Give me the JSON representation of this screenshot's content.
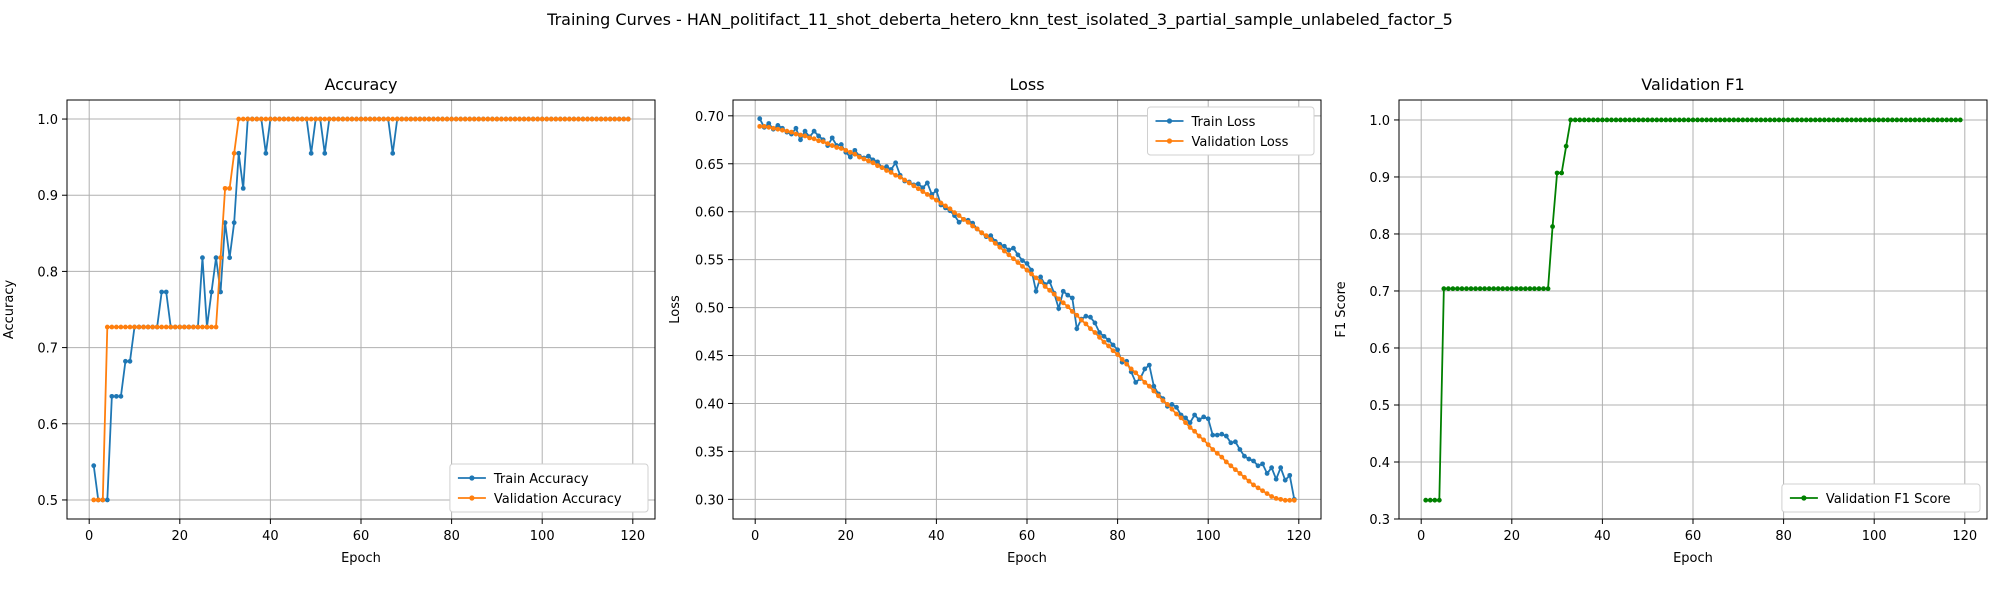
{
  "figure": {
    "suptitle": "Training Curves - HAN_politifact_11_shot_deberta_hetero_knn_test_isolated_3_partial_sample_unlabeled_factor_5"
  },
  "colors": {
    "train": "#1f77b4",
    "validation": "#ff7f0e",
    "f1": "#008000",
    "grid": "#b0b0b0"
  },
  "chart_data": [
    {
      "type": "line",
      "title": "Accuracy",
      "xlabel": "Epoch",
      "ylabel": "Accuracy",
      "xlim": [
        -4.9,
        124.9
      ],
      "ylim": [
        0.475,
        1.025
      ],
      "xticks": [
        0,
        20,
        40,
        60,
        80,
        100,
        120
      ],
      "yticks": [
        0.5,
        0.6,
        0.7,
        0.8,
        0.9,
        1.0
      ],
      "ytick_labels": [
        "0.5",
        "0.6",
        "0.7",
        "0.8",
        "0.9",
        "1.0"
      ],
      "grid": true,
      "legend_position": "bottom-right",
      "series": [
        {
          "name": "Train Accuracy",
          "color": "#1f77b4",
          "x_start": 1,
          "values": [
            0.545,
            0.5,
            0.5,
            0.5,
            0.636,
            0.636,
            0.636,
            0.682,
            0.682,
            0.727,
            0.727,
            0.727,
            0.727,
            0.727,
            0.727,
            0.773,
            0.773,
            0.727,
            0.727,
            0.727,
            0.727,
            0.727,
            0.727,
            0.727,
            0.818,
            0.727,
            0.773,
            0.818,
            0.773,
            0.864,
            0.818,
            0.864,
            0.955,
            0.909,
            1.0,
            1.0,
            1.0,
            1.0,
            0.955,
            1.0,
            1.0,
            1.0,
            1.0,
            1.0,
            1.0,
            1.0,
            1.0,
            1.0,
            0.955,
            1.0,
            1.0,
            0.955,
            1.0,
            1.0,
            1.0,
            1.0,
            1.0,
            1.0,
            1.0,
            1.0,
            1.0,
            1.0,
            1.0,
            1.0,
            1.0,
            1.0,
            0.955,
            1.0,
            1.0,
            1.0,
            1.0,
            1.0,
            1.0,
            1.0,
            1.0,
            1.0,
            1.0,
            1.0,
            1.0,
            1.0,
            1.0,
            1.0,
            1.0,
            1.0,
            1.0,
            1.0,
            1.0,
            1.0,
            1.0,
            1.0,
            1.0,
            1.0,
            1.0,
            1.0,
            1.0,
            1.0,
            1.0,
            1.0,
            1.0,
            1.0,
            1.0,
            1.0,
            1.0,
            1.0,
            1.0,
            1.0,
            1.0,
            1.0,
            1.0,
            1.0,
            1.0,
            1.0,
            1.0,
            1.0,
            1.0,
            1.0,
            1.0,
            1.0,
            1.0
          ]
        },
        {
          "name": "Validation Accuracy",
          "color": "#ff7f0e",
          "x_start": 1,
          "values": [
            0.5,
            0.5,
            0.5,
            0.727,
            0.727,
            0.727,
            0.727,
            0.727,
            0.727,
            0.727,
            0.727,
            0.727,
            0.727,
            0.727,
            0.727,
            0.727,
            0.727,
            0.727,
            0.727,
            0.727,
            0.727,
            0.727,
            0.727,
            0.727,
            0.727,
            0.727,
            0.727,
            0.727,
            0.818,
            0.909,
            0.909,
            0.955,
            1.0,
            1.0,
            1.0,
            1.0,
            1.0,
            1.0,
            1.0,
            1.0,
            1.0,
            1.0,
            1.0,
            1.0,
            1.0,
            1.0,
            1.0,
            1.0,
            1.0,
            1.0,
            1.0,
            1.0,
            1.0,
            1.0,
            1.0,
            1.0,
            1.0,
            1.0,
            1.0,
            1.0,
            1.0,
            1.0,
            1.0,
            1.0,
            1.0,
            1.0,
            1.0,
            1.0,
            1.0,
            1.0,
            1.0,
            1.0,
            1.0,
            1.0,
            1.0,
            1.0,
            1.0,
            1.0,
            1.0,
            1.0,
            1.0,
            1.0,
            1.0,
            1.0,
            1.0,
            1.0,
            1.0,
            1.0,
            1.0,
            1.0,
            1.0,
            1.0,
            1.0,
            1.0,
            1.0,
            1.0,
            1.0,
            1.0,
            1.0,
            1.0,
            1.0,
            1.0,
            1.0,
            1.0,
            1.0,
            1.0,
            1.0,
            1.0,
            1.0,
            1.0,
            1.0,
            1.0,
            1.0,
            1.0,
            1.0,
            1.0,
            1.0,
            1.0,
            1.0
          ]
        }
      ]
    },
    {
      "type": "line",
      "title": "Loss",
      "xlabel": "Epoch",
      "ylabel": "Loss",
      "xlim": [
        -4.9,
        124.9
      ],
      "ylim": [
        0.2795,
        0.7165
      ],
      "xticks": [
        0,
        20,
        40,
        60,
        80,
        100,
        120
      ],
      "yticks": [
        0.3,
        0.35,
        0.4,
        0.45,
        0.5,
        0.55,
        0.6,
        0.65,
        0.7
      ],
      "ytick_labels": [
        "0.30",
        "0.35",
        "0.40",
        "0.45",
        "0.50",
        "0.55",
        "0.60",
        "0.65",
        "0.70"
      ],
      "grid": true,
      "legend_position": "top-right",
      "series": [
        {
          "name": "Train Loss",
          "color": "#1f77b4",
          "x_start": 1,
          "values": [
            0.697,
            0.688,
            0.692,
            0.686,
            0.69,
            0.687,
            0.683,
            0.681,
            0.687,
            0.675,
            0.684,
            0.678,
            0.684,
            0.679,
            0.675,
            0.669,
            0.677,
            0.669,
            0.67,
            0.662,
            0.657,
            0.664,
            0.658,
            0.656,
            0.658,
            0.654,
            0.652,
            0.646,
            0.647,
            0.644,
            0.651,
            0.638,
            0.632,
            0.631,
            0.628,
            0.629,
            0.625,
            0.63,
            0.618,
            0.622,
            0.607,
            0.604,
            0.601,
            0.596,
            0.589,
            0.592,
            0.591,
            0.588,
            0.582,
            0.578,
            0.574,
            0.575,
            0.569,
            0.566,
            0.564,
            0.56,
            0.562,
            0.555,
            0.549,
            0.546,
            0.539,
            0.517,
            0.532,
            0.524,
            0.527,
            0.515,
            0.499,
            0.517,
            0.513,
            0.51,
            0.478,
            0.488,
            0.491,
            0.49,
            0.484,
            0.474,
            0.47,
            0.466,
            0.461,
            0.456,
            0.443,
            0.444,
            0.433,
            0.422,
            0.426,
            0.436,
            0.44,
            0.418,
            0.41,
            0.405,
            0.397,
            0.399,
            0.396,
            0.388,
            0.385,
            0.38,
            0.388,
            0.383,
            0.386,
            0.384,
            0.367,
            0.367,
            0.368,
            0.366,
            0.359,
            0.36,
            0.352,
            0.345,
            0.342,
            0.34,
            0.335,
            0.337,
            0.327,
            0.333,
            0.321,
            0.333,
            0.32,
            0.325,
            0.3
          ]
        },
        {
          "name": "Validation Loss",
          "color": "#ff7f0e",
          "x_start": 1,
          "values": [
            0.689,
            0.689,
            0.688,
            0.687,
            0.686,
            0.685,
            0.684,
            0.683,
            0.681,
            0.68,
            0.679,
            0.677,
            0.676,
            0.674,
            0.673,
            0.671,
            0.669,
            0.667,
            0.666,
            0.664,
            0.662,
            0.66,
            0.657,
            0.655,
            0.653,
            0.651,
            0.648,
            0.646,
            0.643,
            0.641,
            0.638,
            0.636,
            0.633,
            0.63,
            0.627,
            0.624,
            0.621,
            0.618,
            0.615,
            0.612,
            0.609,
            0.606,
            0.603,
            0.599,
            0.596,
            0.592,
            0.589,
            0.585,
            0.582,
            0.578,
            0.575,
            0.571,
            0.567,
            0.563,
            0.559,
            0.555,
            0.551,
            0.547,
            0.543,
            0.539,
            0.535,
            0.531,
            0.527,
            0.522,
            0.518,
            0.514,
            0.509,
            0.505,
            0.501,
            0.496,
            0.492,
            0.487,
            0.483,
            0.478,
            0.474,
            0.469,
            0.464,
            0.46,
            0.455,
            0.451,
            0.446,
            0.441,
            0.436,
            0.432,
            0.427,
            0.422,
            0.418,
            0.413,
            0.408,
            0.403,
            0.399,
            0.394,
            0.389,
            0.385,
            0.38,
            0.375,
            0.371,
            0.366,
            0.362,
            0.357,
            0.352,
            0.348,
            0.344,
            0.339,
            0.335,
            0.331,
            0.327,
            0.323,
            0.319,
            0.315,
            0.312,
            0.309,
            0.306,
            0.303,
            0.301,
            0.3,
            0.299,
            0.299,
            0.299
          ]
        }
      ]
    },
    {
      "type": "line",
      "title": "Validation F1",
      "xlabel": "Epoch",
      "ylabel": "F1 Score",
      "xlim": [
        -4.9,
        124.9
      ],
      "ylim": [
        0.3,
        1.035
      ],
      "xticks": [
        0,
        20,
        40,
        60,
        80,
        100,
        120
      ],
      "yticks": [
        0.3,
        0.4,
        0.5,
        0.6,
        0.7,
        0.8,
        0.9,
        1.0
      ],
      "ytick_labels": [
        "0.3",
        "0.4",
        "0.5",
        "0.6",
        "0.7",
        "0.8",
        "0.9",
        "1.0"
      ],
      "grid": true,
      "legend_position": "bottom-right",
      "series": [
        {
          "name": "Validation F1 Score",
          "color": "#008000",
          "x_start": 1,
          "values": [
            0.333,
            0.333,
            0.333,
            0.333,
            0.704,
            0.704,
            0.704,
            0.704,
            0.704,
            0.704,
            0.704,
            0.704,
            0.704,
            0.704,
            0.704,
            0.704,
            0.704,
            0.704,
            0.704,
            0.704,
            0.704,
            0.704,
            0.704,
            0.704,
            0.704,
            0.704,
            0.704,
            0.704,
            0.813,
            0.907,
            0.907,
            0.954,
            1.0,
            1.0,
            1.0,
            1.0,
            1.0,
            1.0,
            1.0,
            1.0,
            1.0,
            1.0,
            1.0,
            1.0,
            1.0,
            1.0,
            1.0,
            1.0,
            1.0,
            1.0,
            1.0,
            1.0,
            1.0,
            1.0,
            1.0,
            1.0,
            1.0,
            1.0,
            1.0,
            1.0,
            1.0,
            1.0,
            1.0,
            1.0,
            1.0,
            1.0,
            1.0,
            1.0,
            1.0,
            1.0,
            1.0,
            1.0,
            1.0,
            1.0,
            1.0,
            1.0,
            1.0,
            1.0,
            1.0,
            1.0,
            1.0,
            1.0,
            1.0,
            1.0,
            1.0,
            1.0,
            1.0,
            1.0,
            1.0,
            1.0,
            1.0,
            1.0,
            1.0,
            1.0,
            1.0,
            1.0,
            1.0,
            1.0,
            1.0,
            1.0,
            1.0,
            1.0,
            1.0,
            1.0,
            1.0,
            1.0,
            1.0,
            1.0,
            1.0,
            1.0,
            1.0,
            1.0,
            1.0,
            1.0,
            1.0,
            1.0,
            1.0,
            1.0,
            1.0
          ]
        }
      ]
    }
  ]
}
